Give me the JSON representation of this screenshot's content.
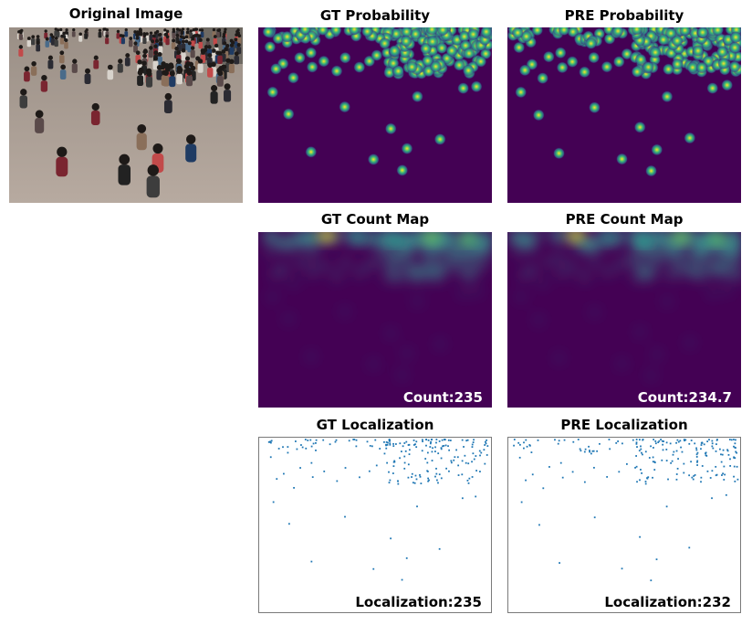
{
  "titles": {
    "original": "Original Image",
    "gt_probability": "GT Probability",
    "pre_probability": "PRE Probability",
    "gt_count_map": "GT Count Map",
    "pre_count_map": "PRE Count Map",
    "gt_localization": "GT Localization",
    "pre_localization": "PRE Localization"
  },
  "labels": {
    "gt_count": "Count:235",
    "pre_count": "Count:234.7",
    "gt_localization": "Localization:235",
    "pre_localization": "Localization:232"
  },
  "colors": {
    "viridis_dark": "#440154",
    "blob_center": "#fde725",
    "blob_mid": "#35b779",
    "blob_edge": "#31688e",
    "point": "#1f77b4"
  }
}
